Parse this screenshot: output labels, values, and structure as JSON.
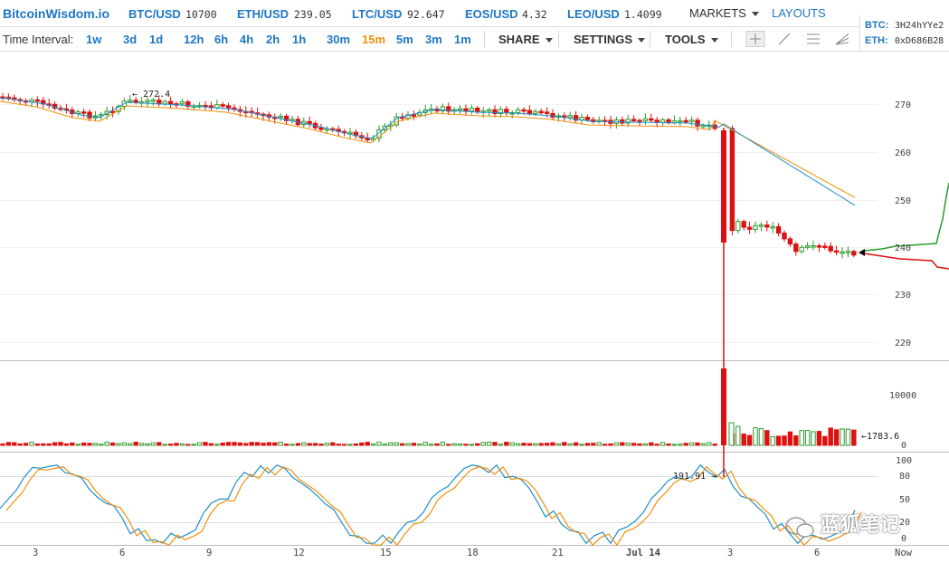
{
  "brand": "BitcoinWisdom.io",
  "tickers": [
    {
      "pair": "BTC/USD",
      "value": "10700"
    },
    {
      "pair": "ETH/USD",
      "value": "239.05"
    },
    {
      "pair": "LTC/USD",
      "value": "92.647"
    },
    {
      "pair": "EOS/USD",
      "value": "4.32"
    },
    {
      "pair": "LEO/USD",
      "value": "1.4099"
    }
  ],
  "nav": {
    "markets": "MARKETS",
    "layouts": "LAYOUTS"
  },
  "toolbar": {
    "time_interval_label": "Time Interval:",
    "intervals": [
      "1w",
      "3d",
      "1d",
      "12h",
      "6h",
      "4h",
      "2h",
      "1h",
      "30m",
      "15m",
      "5m",
      "3m",
      "1m"
    ],
    "active_interval": "15m",
    "share": "SHARE",
    "settings": "SETTINGS",
    "tools": "TOOLS"
  },
  "donation": {
    "btc_label": "BTC:",
    "btc_addr": "3H24hYYe2",
    "eth_label": "ETH:",
    "eth_addr": "0xD686B28"
  },
  "chart": {
    "price_ticks": [
      "270",
      "260",
      "250",
      "240",
      "230",
      "220"
    ],
    "volume_ticks": [
      "10000",
      "0"
    ],
    "osc_ticks": [
      "100",
      "80",
      "50",
      "20",
      "0"
    ],
    "date_labels": [
      "3",
      "6",
      "9",
      "12",
      "15",
      "18",
      "21",
      "Jul 14",
      "3",
      "6",
      "Now"
    ],
    "high_note": "← 272.4",
    "volume_note": "←1783.6",
    "low_note": "191.91 →",
    "colors": {
      "up": "#2a9a2a",
      "down": "#dd1111",
      "ema_fast": "#1e8fc8",
      "ema_slow": "#f0900c"
    }
  },
  "watermark": "蓝狐笔记"
}
